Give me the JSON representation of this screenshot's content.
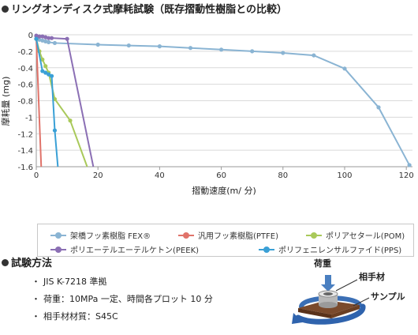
{
  "chart_title": "リングオンディスク式摩耗試験（既存摺動性樹脂との比較）",
  "chart_data": {
    "type": "line",
    "xlabel": "摺動速度(m/ 分)",
    "ylabel": "摩耗量 (mg)",
    "xlim": [
      0,
      122
    ],
    "ylim": [
      -1.6,
      0
    ],
    "x_ticks": [
      0,
      20,
      40,
      60,
      80,
      100,
      120
    ],
    "y_ticks": [
      0,
      -0.2,
      -0.4,
      -0.6,
      -0.8,
      -1,
      -1.2,
      -1.4,
      -1.6
    ],
    "x_tick_labels": [
      "0",
      "20",
      "40",
      "60",
      "80",
      "100",
      "120"
    ],
    "y_tick_labels": [
      "0",
      "-0.2",
      "-0.4",
      "-0.6",
      "-0.8",
      "-1",
      "-1.2",
      "-1.4",
      "-1.6"
    ],
    "grid": "horizontal",
    "legend_placement": "bottom",
    "series": [
      {
        "name": "架橋フッ素樹脂 FEX®",
        "color": "#8ab4d3",
        "x": [
          0,
          1,
          2,
          3,
          4,
          6,
          20,
          30,
          40,
          50,
          60,
          70,
          80,
          90,
          100,
          111,
          121
        ],
        "y": [
          -0.02,
          -0.06,
          -0.07,
          -0.08,
          -0.09,
          -0.1,
          -0.12,
          -0.13,
          -0.14,
          -0.16,
          -0.18,
          -0.2,
          -0.22,
          -0.25,
          -0.41,
          -0.88,
          -1.58
        ]
      },
      {
        "name": "汎用フッ素樹脂(PTFE)",
        "color": "#e0736a",
        "x": [
          0,
          1.6
        ],
        "y": [
          -0.05,
          -1.6
        ]
      },
      {
        "name": "ポリアセタール(POM)",
        "color": "#a9c95a",
        "x": [
          0,
          1,
          2,
          3,
          4,
          6,
          11,
          16.5
        ],
        "y": [
          -0.05,
          -0.2,
          -0.3,
          -0.38,
          -0.46,
          -0.78,
          -1.04,
          -1.6
        ]
      },
      {
        "name": "ポリエーテルエーテルケトン(PEEK)",
        "color": "#8b6fb4",
        "x": [
          0,
          1,
          2,
          3,
          4,
          5,
          10,
          18.5
        ],
        "y": [
          -0.01,
          -0.02,
          -0.02,
          -0.03,
          -0.04,
          -0.04,
          -0.05,
          -1.6
        ]
      },
      {
        "name": "ポリフェニレンサルファイド(PPS)",
        "color": "#3aa0d6",
        "x": [
          0,
          2,
          3,
          4,
          5,
          6,
          7
        ],
        "y": [
          -0.05,
          -0.44,
          -0.46,
          -0.48,
          -0.5,
          -1.16,
          -1.6
        ]
      }
    ]
  },
  "method": {
    "title": "試験方法",
    "bullet": "・",
    "items": [
      "JIS K-7218 準拠",
      "荷重：10MPa 一定、時間各プロット 10 分",
      "相手材材質：S45C"
    ]
  },
  "diagram": {
    "load_label": "荷重",
    "counter_label": "相手材",
    "sample_label": "サンプル"
  }
}
